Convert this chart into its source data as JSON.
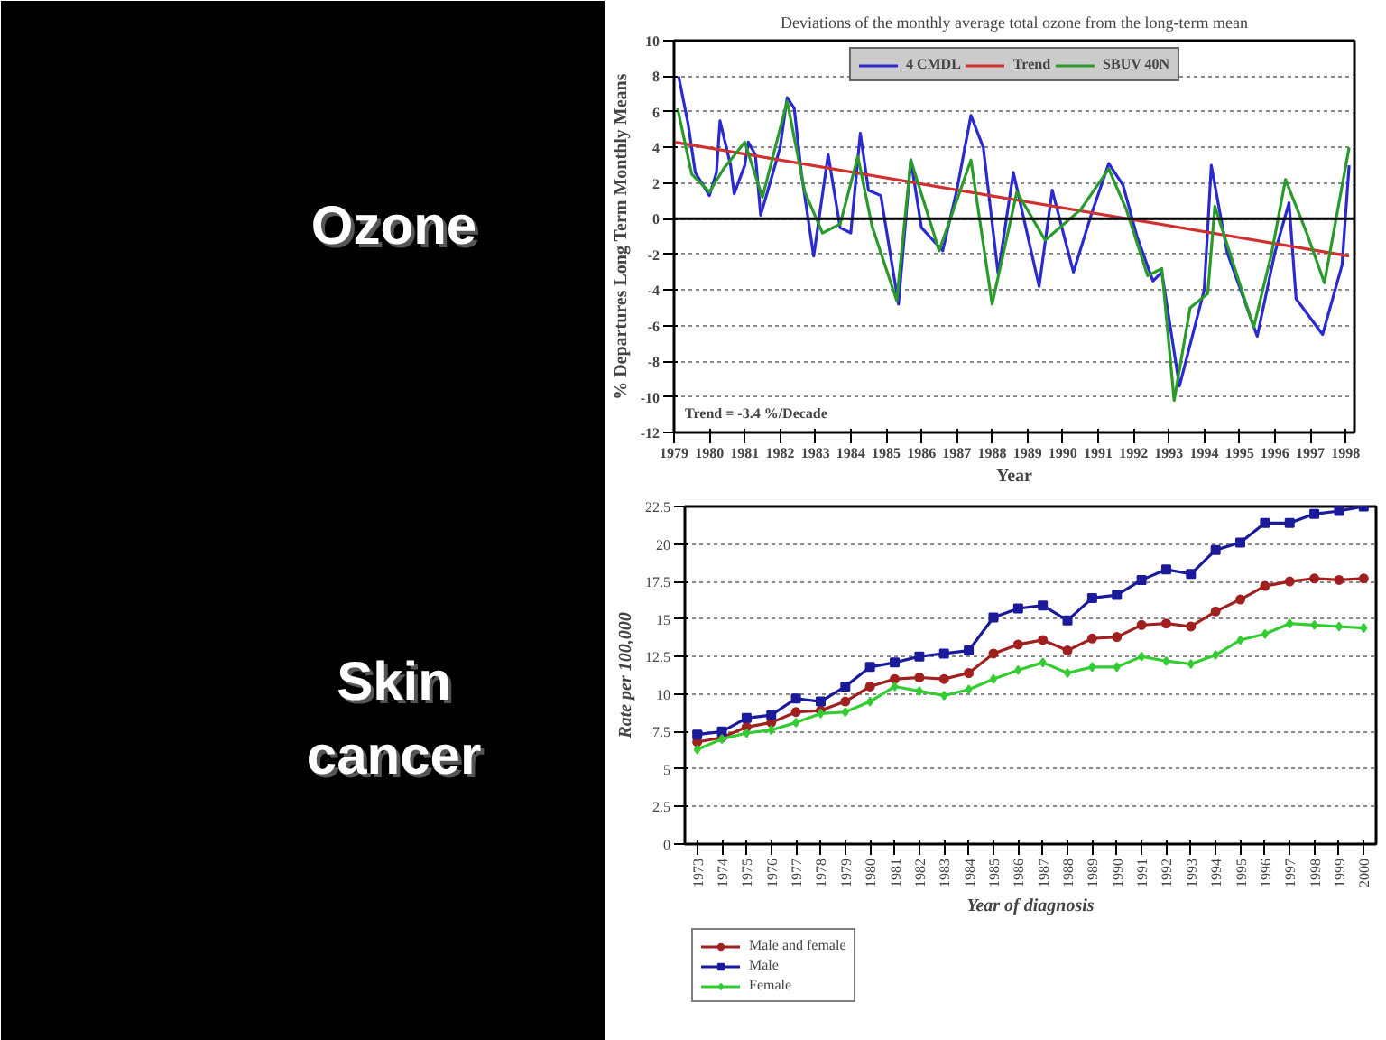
{
  "chart_data": [
    {
      "type": "other",
      "annotations": [
        "Ozone",
        "Skin cancer"
      ]
    },
    {
      "type": "line",
      "title": "Deviations of the monthly average total ozone from the long-term mean",
      "xlabel": "Year",
      "ylabel": "% Departures Long Term Monthly Means",
      "xlim": [
        1979,
        1998.25
      ],
      "xticks": [
        1979,
        1980,
        1981,
        1982,
        1983,
        1984,
        1985,
        1986,
        1987,
        1988,
        1989,
        1990,
        1991,
        1992,
        1993,
        1994,
        1995,
        1996,
        1997,
        1998
      ],
      "ylim": [
        -12,
        10
      ],
      "yticks": [
        -12,
        -10,
        -8,
        -6,
        -4,
        -2,
        0,
        2,
        4,
        6,
        8,
        10
      ],
      "grid": "y",
      "legend": "top",
      "ref_lines": [
        {
          "axis": "y",
          "value": 0,
          "color": "#000000"
        }
      ],
      "annotations": [
        "Trend = -3.4 %/Decade"
      ],
      "series": [
        {
          "name": "4 CMDL",
          "color": "#2a2ad0",
          "x": [
            1979.13,
            1979.4,
            1979.6,
            1980.0,
            1980.2,
            1980.3,
            1980.6,
            1980.7,
            1981.0,
            1981.1,
            1981.3,
            1981.45,
            1981.7,
            1982.0,
            1982.2,
            1982.4,
            1982.6,
            1982.95,
            1983.36,
            1983.7,
            1984.0,
            1984.27,
            1984.5,
            1984.85,
            1985.35,
            1985.7,
            1986.0,
            1986.6,
            1987.0,
            1987.4,
            1987.75,
            1988.17,
            1988.6,
            1989.33,
            1989.7,
            1990.3,
            1990.8,
            1991.3,
            1991.7,
            1992.1,
            1992.55,
            1992.8,
            1993.3,
            1994.0,
            1994.2,
            1994.65,
            1995.5,
            1996.0,
            1996.4,
            1996.6,
            1997.35,
            1997.9,
            1998.1
          ],
          "values": [
            8.0,
            5.3,
            2.6,
            1.3,
            2.6,
            5.5,
            3.0,
            1.4,
            3.0,
            4.3,
            3.6,
            0.2,
            1.9,
            4.0,
            6.8,
            6.2,
            2.6,
            -2.1,
            3.6,
            -0.5,
            -0.8,
            4.8,
            1.6,
            1.3,
            -4.8,
            3.3,
            -0.5,
            -1.8,
            1.6,
            5.8,
            4.0,
            -3.1,
            2.6,
            -3.8,
            1.6,
            -3.0,
            0.2,
            3.1,
            1.9,
            -1.0,
            -3.5,
            -3.0,
            -9.4,
            -4.0,
            3.0,
            -1.9,
            -6.6,
            -1.9,
            0.9,
            -4.5,
            -6.5,
            -2.6,
            3.0
          ]
        },
        {
          "name": "Trend",
          "color": "#d03030",
          "x": [
            1979.0,
            1998.1
          ],
          "values": [
            4.3,
            -2.1
          ]
        },
        {
          "name": "SBUV 40N",
          "color": "#2a9a2a",
          "x": [
            1979.1,
            1979.5,
            1980.0,
            1980.4,
            1981.0,
            1981.5,
            1982.2,
            1982.7,
            1983.2,
            1983.7,
            1984.2,
            1984.6,
            1985.3,
            1985.7,
            1986.5,
            1987.4,
            1988.0,
            1988.7,
            1989.5,
            1990.5,
            1991.3,
            1991.8,
            1992.4,
            1992.8,
            1993.15,
            1993.6,
            1994.1,
            1994.3,
            1995.4,
            1995.9,
            1996.3,
            1996.9,
            1997.4,
            1998.1
          ],
          "values": [
            6.2,
            2.5,
            1.5,
            2.8,
            4.3,
            1.2,
            6.6,
            1.5,
            -0.8,
            -0.3,
            3.5,
            -0.4,
            -4.6,
            3.3,
            -1.8,
            3.3,
            -4.8,
            1.5,
            -1.2,
            0.5,
            2.8,
            0.5,
            -3.2,
            -2.8,
            -10.2,
            -5.0,
            -4.2,
            0.7,
            -6.1,
            -2.0,
            2.2,
            -0.8,
            -3.6,
            4.0
          ]
        }
      ]
    },
    {
      "type": "line",
      "xlabel": "Year of diagnosis",
      "ylabel": "Rate per 100,000",
      "categories": [
        "1973",
        "1974",
        "1975",
        "1976",
        "1977",
        "1978",
        "1979",
        "1980",
        "1981",
        "1982",
        "1983",
        "1984",
        "1985",
        "1986",
        "1987",
        "1988",
        "1989",
        "1990",
        "1991",
        "1992",
        "1993",
        "1994",
        "1995",
        "1996",
        "1997",
        "1998",
        "1999",
        "2000"
      ],
      "ylim": [
        0,
        22.5
      ],
      "yticks": [
        0,
        2.5,
        5,
        7.5,
        10,
        12.5,
        15,
        17.5,
        20,
        22.5
      ],
      "grid": "y",
      "legend": "bottom left",
      "series": [
        {
          "name": "Male and female",
          "color": "#a02020",
          "marker": "circle",
          "values": [
            6.8,
            7.1,
            7.8,
            8.1,
            8.8,
            8.9,
            9.5,
            10.5,
            11.0,
            11.1,
            11.0,
            11.4,
            12.7,
            13.3,
            13.6,
            12.9,
            13.7,
            13.8,
            14.6,
            14.7,
            14.5,
            15.5,
            16.3,
            17.2,
            17.5,
            17.7,
            17.6,
            17.7
          ]
        },
        {
          "name": "Male",
          "color": "#1a1a9a",
          "marker": "square",
          "values": [
            7.3,
            7.5,
            8.4,
            8.6,
            9.7,
            9.5,
            10.5,
            11.8,
            12.1,
            12.5,
            12.7,
            12.9,
            15.1,
            15.7,
            15.9,
            14.9,
            16.4,
            16.6,
            17.6,
            18.3,
            18.0,
            19.6,
            20.1,
            21.4,
            21.4,
            22.0,
            22.2,
            22.5
          ]
        },
        {
          "name": "Female",
          "color": "#33cc33",
          "marker": "diamond",
          "values": [
            6.3,
            7.0,
            7.4,
            7.6,
            8.1,
            8.7,
            8.8,
            9.5,
            10.5,
            10.2,
            9.9,
            10.3,
            11.0,
            11.6,
            12.1,
            11.4,
            11.8,
            11.8,
            12.5,
            12.2,
            12.0,
            12.6,
            13.6,
            14.0,
            14.7,
            14.6,
            14.5,
            14.4
          ]
        }
      ]
    }
  ]
}
